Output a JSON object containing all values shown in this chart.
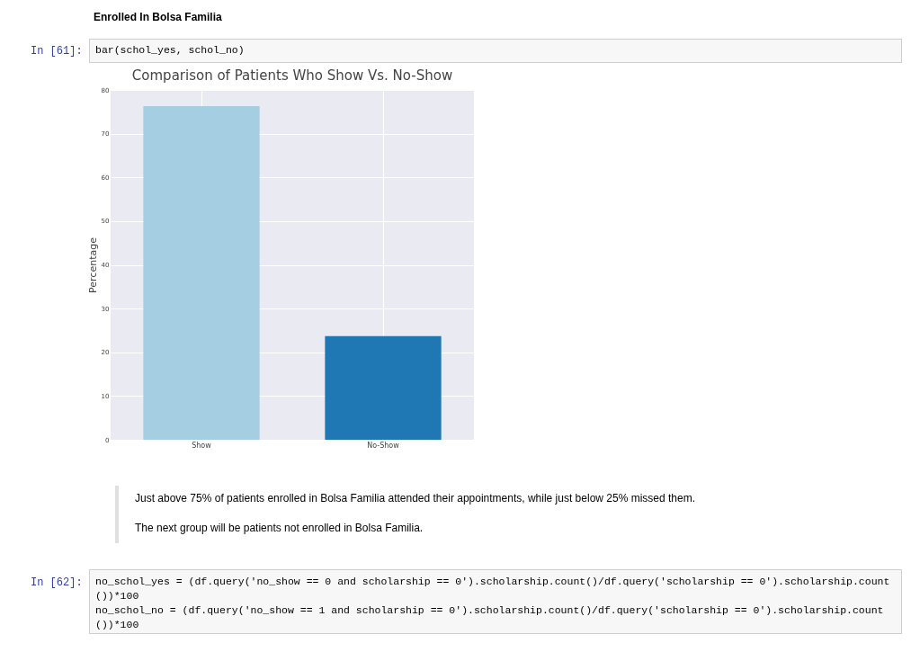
{
  "chart_data": {
    "type": "bar",
    "title": "Comparison of Patients Who Show Vs. No-Show",
    "ylabel": "Percentage",
    "categories": [
      "Show",
      "No-Show"
    ],
    "values": [
      76.3,
      23.7
    ],
    "colors": [
      "#a6cee3",
      "#1f78b4"
    ],
    "ylim": [
      0,
      80
    ],
    "yticks": [
      0,
      10,
      20,
      30,
      40,
      50,
      60,
      70,
      80
    ],
    "grid": true,
    "annotations": [
      "Enrolled In Bolsa Familia",
      "In [61]:",
      "bar(schol_yes, schol_no)",
      "Just above 75% of patients enrolled in Bolsa Familia attended their appointments, while just below 25% missed them.",
      "The next group will be patients not enrolled in Bolsa Familia.",
      "In [62]:",
      "no_schol_yes = (df.query('no_show == 0 and scholarship == 0').scholarship.count()/df.query('scholarship == 0').scholarship.count())*100\nno_schol_no = (df.query('no_show == 1 and scholarship == 0').scholarship.count()/df.query('scholarship == 0').scholarship.count())*100"
    ]
  }
}
